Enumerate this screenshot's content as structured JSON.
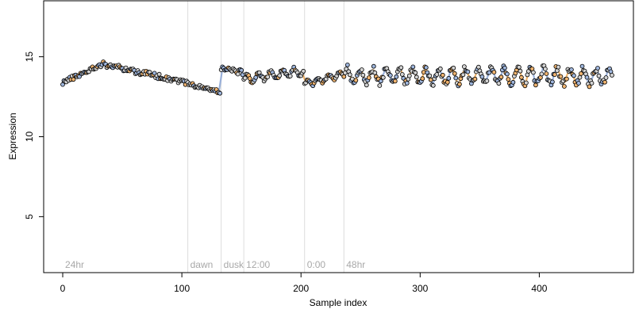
{
  "chart_data": {
    "type": "scatter",
    "title": "",
    "xlabel": "Sample index",
    "ylabel": "Expression",
    "xlim": [
      -16,
      479
    ],
    "ylim": [
      1.5,
      18.5
    ],
    "x_ticks": [
      0,
      100,
      200,
      300,
      400
    ],
    "y_ticks": [
      5,
      10,
      15
    ],
    "grid": false,
    "vlines": [
      0,
      105,
      133,
      152,
      203,
      236
    ],
    "annotations": [
      {
        "text": "24hr",
        "x": 2
      },
      {
        "text": "dawn",
        "x": 107
      },
      {
        "text": "dusk",
        "x": 135
      },
      {
        "text": "12:00",
        "x": 154
      },
      {
        "text": "0:00",
        "x": 205
      },
      {
        "text": "48hr",
        "x": 238
      }
    ],
    "colors": {
      "point_stroke": "#000000",
      "fill_light": "#d3d3d3",
      "fill_blue": "#9fb6dd",
      "fill_orange": "#f0b470",
      "trend_blue": "#8fa9d6",
      "trend_orange": "#f2ae5c",
      "vline": "#dcdcdc",
      "annotation": "#a8a8a8"
    },
    "sample_count": 462,
    "segments": [
      {
        "start": 0,
        "end": 35,
        "y0": 13.4,
        "y1": 14.6,
        "amp": 0.12,
        "period": 0
      },
      {
        "start": 36,
        "end": 104,
        "y0": 14.5,
        "y1": 13.4,
        "amp": 0.15,
        "period": 0
      },
      {
        "start": 105,
        "end": 132,
        "y0": 13.3,
        "y1": 12.8,
        "amp": 0.1,
        "period": 0
      },
      {
        "start": 133,
        "end": 151,
        "y0": 14.3,
        "y1": 14.0,
        "amp": 0.15,
        "period": 0
      },
      {
        "start": 152,
        "end": 202,
        "y0": 13.6,
        "y1": 14.1,
        "amp": 0.25,
        "period": 10
      },
      {
        "start": 203,
        "end": 235,
        "y0": 13.3,
        "y1": 13.9,
        "amp": 0.2,
        "period": 9
      },
      {
        "start": 236,
        "end": 461,
        "y0": 13.8,
        "y1": 13.8,
        "amp": 0.5,
        "period": 11
      }
    ],
    "trend": {
      "start": 130,
      "end": 461
    }
  }
}
